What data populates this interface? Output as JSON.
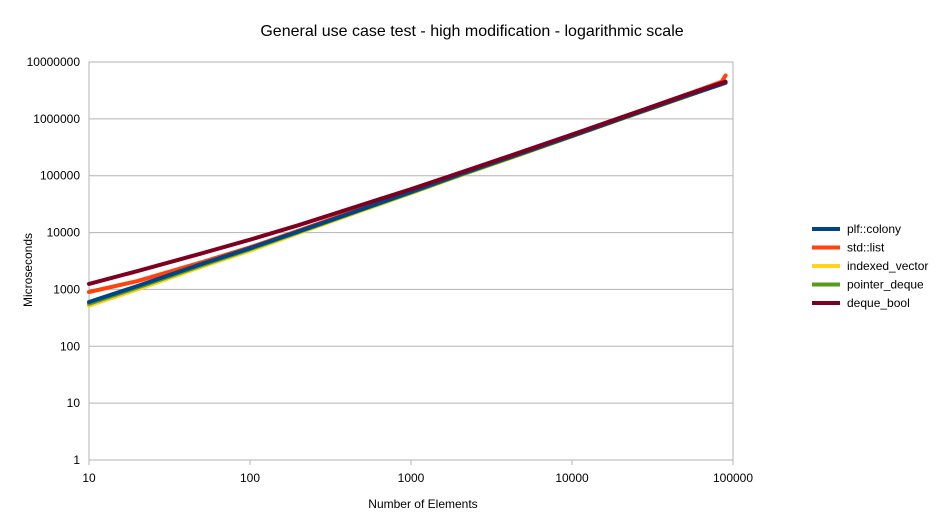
{
  "chart_data": {
    "type": "line",
    "title": "General use case test - high modification - logarithmic scale",
    "xlabel": "Number of Elements",
    "ylabel": "Microseconds",
    "xscale": "log",
    "yscale": "log",
    "xlim": [
      10,
      100000
    ],
    "ylim": [
      1,
      10000000
    ],
    "grid": true,
    "legend_position": "right",
    "x_ticks": [
      "10",
      "100",
      "1000",
      "10000",
      "100000"
    ],
    "y_ticks": [
      "1",
      "10",
      "100",
      "1000",
      "10000",
      "100000",
      "1000000",
      "10000000"
    ],
    "series": [
      {
        "name": "plf::colony",
        "color": "#004586",
        "x": [
          10,
          20,
          50,
          100,
          200,
          500,
          1000,
          2000,
          5000,
          10000,
          20000,
          50000,
          90000
        ],
        "y": [
          600,
          1150,
          2800,
          5300,
          10500,
          26000,
          52000,
          105000,
          255000,
          500000,
          1000000,
          2450000,
          4300000
        ]
      },
      {
        "name": "std::list",
        "color": "#ff420e",
        "x": [
          10,
          20,
          50,
          100,
          200,
          500,
          1000,
          2000,
          5000,
          10000,
          20000,
          50000,
          85000,
          90000
        ],
        "y": [
          900,
          1400,
          3000,
          5500,
          10800,
          27000,
          54000,
          108000,
          265000,
          520000,
          1040000,
          2600000,
          4500000,
          5800000
        ]
      },
      {
        "name": "indexed_vector",
        "color": "#ffd320",
        "x": [
          10,
          20,
          50,
          100,
          200,
          500,
          1000,
          2000,
          5000,
          10000,
          20000,
          50000,
          90000
        ],
        "y": [
          520,
          1000,
          2500,
          4800,
          9800,
          24500,
          49000,
          100000,
          245000,
          490000,
          980000,
          2400000,
          4400000
        ]
      },
      {
        "name": "pointer_deque",
        "color": "#579d1c",
        "x": [
          10,
          20,
          50,
          100,
          200,
          500,
          1000,
          2000,
          5000,
          10000,
          20000,
          50000,
          90000
        ],
        "y": [
          560,
          1080,
          2650,
          5100,
          10200,
          25500,
          50500,
          102000,
          250000,
          500000,
          1000000,
          2480000,
          4400000
        ]
      },
      {
        "name": "deque_bool",
        "color": "#7e0021",
        "x": [
          10,
          20,
          50,
          100,
          200,
          500,
          1000,
          2000,
          5000,
          10000,
          20000,
          50000,
          90000
        ],
        "y": [
          1250,
          2100,
          4300,
          7500,
          13500,
          31000,
          58000,
          112000,
          270000,
          530000,
          1050000,
          2600000,
          4500000
        ]
      }
    ]
  }
}
